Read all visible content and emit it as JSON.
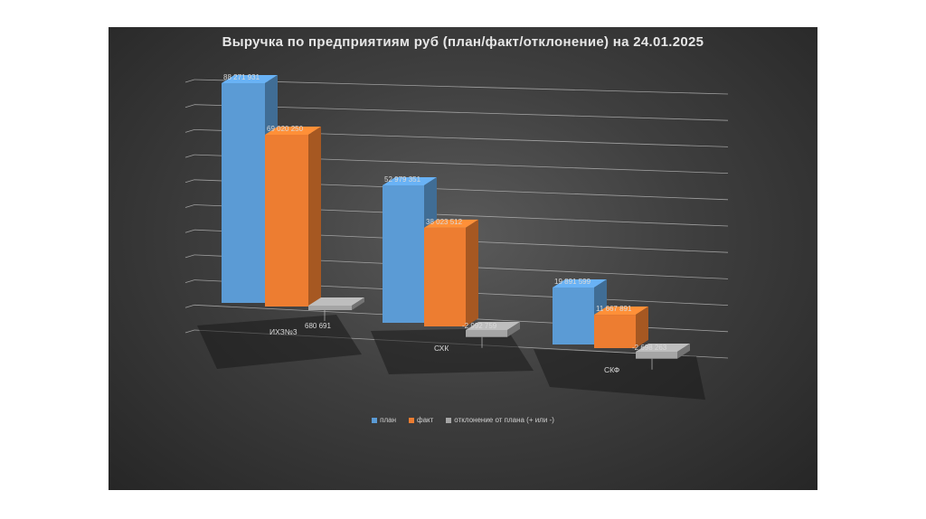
{
  "chart_data": {
    "type": "bar",
    "title": "Выручка по предприятиям руб (план/факт/отклонение) на 24.01.2025",
    "categories": [
      "ИХЗ№3",
      "СХК",
      "СКФ"
    ],
    "series": [
      {
        "name": "план",
        "color": "#5b9bd5",
        "values": [
          88271931,
          52979351,
          19891599
        ],
        "labels": [
          "88 271 931",
          "52 979 351",
          "19 891 599"
        ]
      },
      {
        "name": "факт",
        "color": "#ed7d31",
        "values": [
          69020250,
          38023512,
          11667891
        ],
        "labels": [
          "69 020 250",
          "38 023 512",
          "11 667 891"
        ]
      },
      {
        "name": "отклонение от плана (+ или -)",
        "color": "#a5a5a5",
        "values": [
          680691,
          -2992759,
          -2698263
        ],
        "labels": [
          "680 691",
          "-2 992 759",
          "-2 698 263"
        ]
      }
    ],
    "legend_position": "bottom",
    "grid": true
  }
}
